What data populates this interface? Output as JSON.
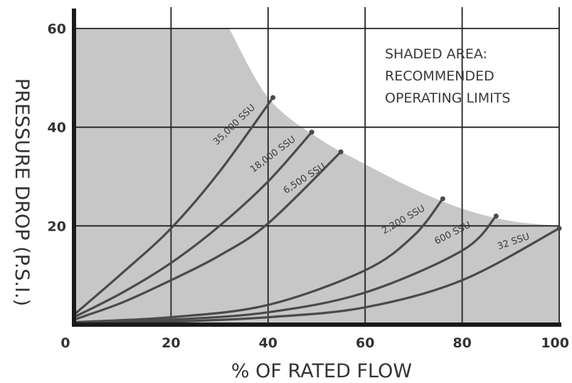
{
  "chart_data": {
    "type": "line",
    "xlabel": "% OF RATED FLOW",
    "ylabel": "PRESSURE DROP (P.S.I.)",
    "xlim": [
      0,
      100
    ],
    "ylim": [
      0,
      60
    ],
    "x_ticks": [
      0,
      20,
      40,
      60,
      80,
      100
    ],
    "x_tick_labels": [
      "0",
      "20",
      "40",
      "60",
      "80",
      "100"
    ],
    "y_ticks": [
      20,
      40,
      60
    ],
    "y_tick_labels": [
      "20",
      "40",
      "60"
    ],
    "grid": true,
    "annotation": [
      "SHADED AREA:",
      "RECOMMENDED",
      "OPERATING LIMITS"
    ],
    "shaded_region_boundary": {
      "x": [
        32,
        40,
        50,
        60,
        70,
        80,
        90,
        100
      ],
      "y": [
        60,
        46,
        38,
        32.5,
        27.5,
        23.5,
        21,
        20
      ]
    },
    "series": [
      {
        "name": "35,000 SSU",
        "x": [
          0,
          10,
          20,
          30,
          41
        ],
        "y": [
          2,
          10.5,
          19.5,
          31,
          46
        ]
      },
      {
        "name": "18,000 SSU",
        "x": [
          0,
          10,
          20,
          30,
          40,
          49
        ],
        "y": [
          1.5,
          6.5,
          12.5,
          20,
          29,
          39
        ]
      },
      {
        "name": "6,500 SSU",
        "x": [
          0,
          10,
          20,
          30,
          40,
          55
        ],
        "y": [
          1,
          4.5,
          9,
          14,
          20.5,
          35
        ]
      },
      {
        "name": "2,200 SSU",
        "x": [
          0,
          20,
          40,
          60,
          70,
          76
        ],
        "y": [
          0.5,
          1.5,
          4,
          11,
          18,
          25.5
        ]
      },
      {
        "name": "600 SSU",
        "x": [
          0,
          20,
          40,
          60,
          80,
          87
        ],
        "y": [
          0.3,
          1,
          2.5,
          6.5,
          15,
          22
        ]
      },
      {
        "name": "32 SSU",
        "x": [
          0,
          20,
          40,
          60,
          80,
          100
        ],
        "y": [
          0.2,
          0.6,
          1.5,
          3.5,
          9,
          19.5
        ]
      }
    ],
    "colors": {
      "shade": "#c7c7c7",
      "curve": "#4a4a4a",
      "grid": "#222222",
      "axis": "#1a1a1a",
      "text": "#333333"
    }
  }
}
